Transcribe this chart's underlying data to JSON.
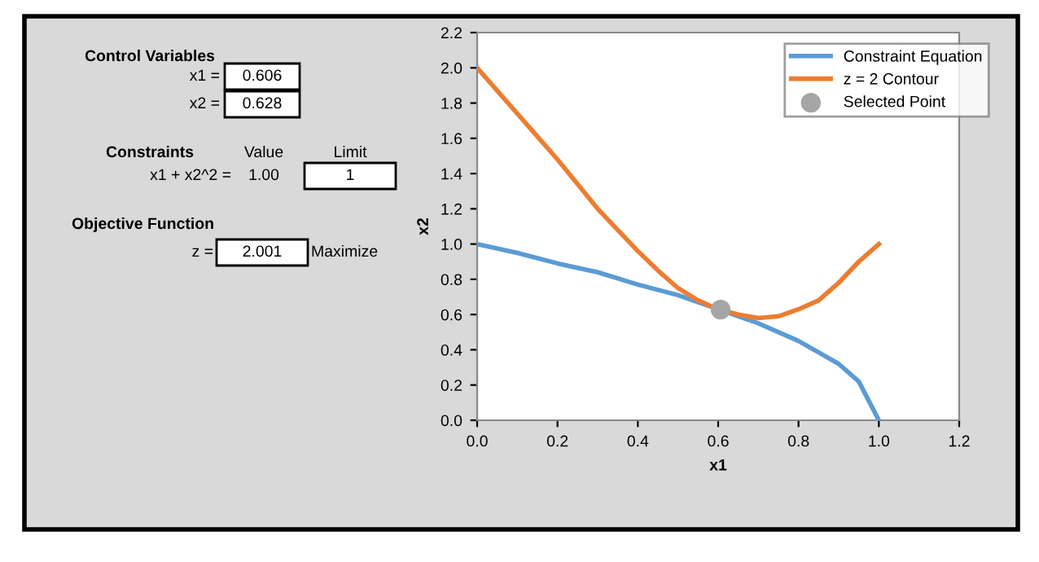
{
  "chart_data": [
    {
      "type": "other",
      "annotations": [
        "Control Variables",
        "x1 =",
        "0.606",
        "x2 =",
        "0.628",
        "Constraints",
        "Value",
        "Limit",
        "x1 + x2^2 =",
        "1.00",
        "1",
        "Objective Function",
        "z =",
        "2.001",
        "Maximize"
      ]
    },
    {
      "type": "line",
      "xlabel": "x1",
      "ylabel": "x2",
      "xlim": [
        0,
        1.2
      ],
      "xticks": [
        {
          "value": 0,
          "label": "0.0"
        },
        0.2,
        0.4,
        0.6,
        0.8,
        {
          "value": 1,
          "label": "1.0"
        },
        1.2
      ],
      "ylim": [
        0,
        2.2
      ],
      "yticks": [
        {
          "value": 0,
          "label": "0.0"
        },
        0.2,
        0.4,
        0.6,
        0.8,
        {
          "value": 1,
          "label": "1.0"
        },
        1.2,
        1.4,
        1.6,
        1.8,
        {
          "value": 2,
          "label": "2.0"
        },
        2.2
      ],
      "grid": false,
      "legend": "top right",
      "marker": "none",
      "line_style": "solid",
      "series": [
        {
          "name": "Constraint Equation",
          "color": "#5b9bd5",
          "x": [
            0,
            0.1,
            0.2,
            0.3,
            0.4,
            0.5,
            0.6,
            0.7,
            0.8,
            0.9,
            0.95,
            1.0
          ],
          "values": [
            1.0,
            0.95,
            0.89,
            0.84,
            0.77,
            0.71,
            0.63,
            0.55,
            0.45,
            0.32,
            0.22,
            0.0
          ]
        },
        {
          "name": "z = 2 Contour",
          "color": "#ed7d31",
          "x": [
            0,
            0.05,
            0.1,
            0.15,
            0.2,
            0.25,
            0.3,
            0.35,
            0.4,
            0.45,
            0.5,
            0.55,
            0.6,
            0.65,
            0.7,
            0.75,
            0.8,
            0.85,
            0.9,
            0.95,
            1.0
          ],
          "values": [
            2.0,
            1.87,
            1.74,
            1.61,
            1.48,
            1.34,
            1.2,
            1.08,
            0.96,
            0.85,
            0.75,
            0.68,
            0.63,
            0.6,
            0.58,
            0.59,
            0.63,
            0.68,
            0.78,
            0.9,
            1.0
          ]
        },
        {
          "name": "Selected Point",
          "type": "scatter",
          "color": "#a5a5a5",
          "marker": "circle",
          "x": [
            0.606
          ],
          "values": [
            0.628
          ]
        }
      ]
    }
  ]
}
